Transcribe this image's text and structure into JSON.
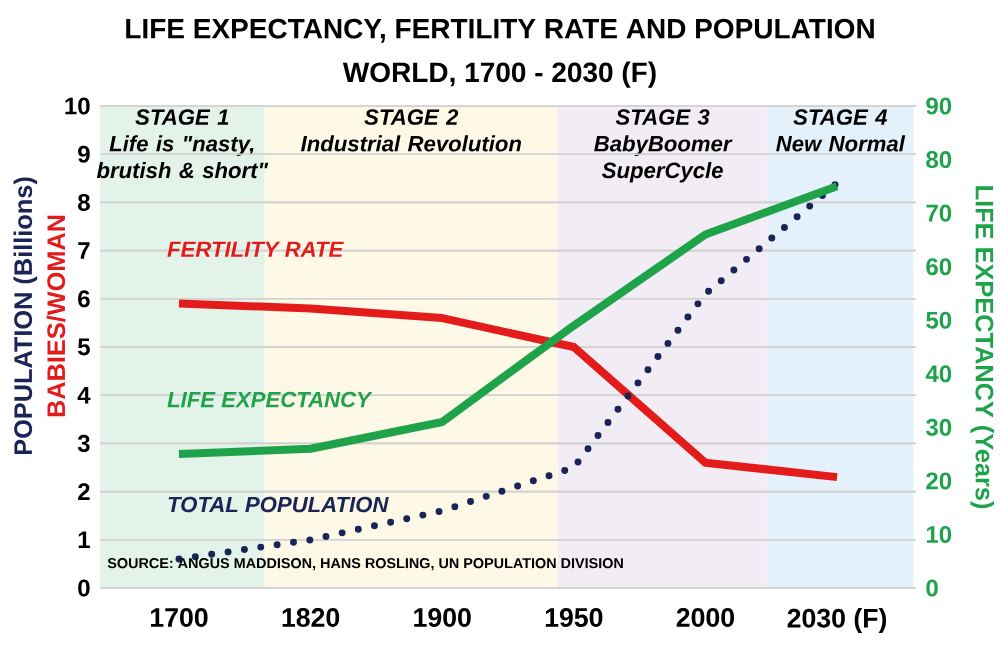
{
  "chart_data": {
    "type": "line",
    "title": "LIFE EXPECTANCY, FERTILITY RATE AND POPULATION",
    "subtitle": "WORLD, 1700 - 2030 (F)",
    "categories": [
      "1700",
      "1820",
      "1900",
      "1950",
      "2000",
      "2030 (F)"
    ],
    "ylabel": "POPULATION (Billions)",
    "y2label": "LIFE EXPECTANCY (Years)",
    "ylim": [
      0,
      10
    ],
    "yticks": [
      0,
      1,
      2,
      3,
      4,
      5,
      6,
      7,
      8,
      9,
      10
    ],
    "y2lim": [
      0,
      90
    ],
    "y2ticks": [
      0,
      10,
      20,
      30,
      40,
      50,
      60,
      70,
      80,
      90
    ],
    "grid": "y",
    "series": [
      {
        "name": "FERTILITY RATE",
        "color": "#e31b1b",
        "values": [
          5.9,
          5.8,
          5.6,
          5.0,
          2.6,
          2.3
        ]
      },
      {
        "name": "LIFE EXPECTANCY",
        "color": "#1fa34a",
        "axis": "y2",
        "values": [
          25,
          26,
          31,
          49,
          66,
          75
        ]
      },
      {
        "name": "TOTAL POPULATION",
        "color": "#1a2456",
        "line_style": "dotted",
        "values": [
          0.6,
          1.0,
          1.6,
          2.5,
          6.1,
          8.4
        ]
      }
    ],
    "annotations": [
      "STAGE 1",
      "Life is \"nasty, brutish & short\"",
      "STAGE 2",
      "Industrial Revolution",
      "STAGE 3",
      "BabyBoomer SuperCycle",
      "STAGE 4",
      "New Normal",
      "BABIES/WOMAN",
      "SOURCE: ANGUS MADDISON, HANS ROSLING, UN POPULATION DIVISION"
    ]
  }
}
